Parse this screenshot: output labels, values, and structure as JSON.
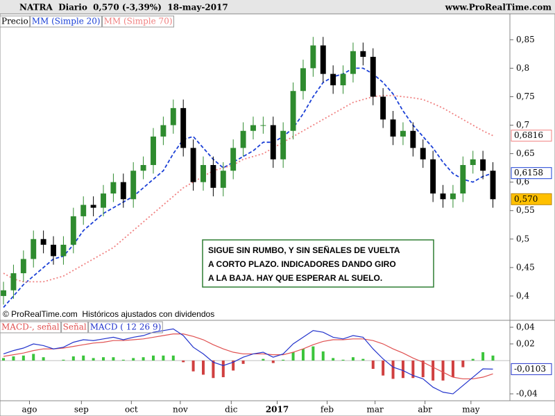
{
  "header": {
    "title": "NATRA  Diario  0,570 (-3,39%)  18-may-2017",
    "site": "www.ProRealTime.com"
  },
  "annotation": {
    "lines": [
      "SIGUE SIN RUMBO, Y SIN SEÑALES DE VUELTA",
      "A CORTO PLAZO. INDICADORES DANDO GIRO",
      "A LA BAJA. HAY QUE ESPERAR AL SUELO."
    ]
  },
  "footer": "© ProRealTime.com  Históricos ajustados con dividendos",
  "chart_data": [
    {
      "type": "candlestick",
      "legend_label": "Precio",
      "up_color": "#2e8b2e",
      "down_color": "#000000",
      "open": [
        0.4,
        0.41,
        0.44,
        0.465,
        0.5,
        0.49,
        0.47,
        0.49,
        0.54,
        0.56,
        0.555,
        0.58,
        0.6,
        0.57,
        0.62,
        0.63,
        0.68,
        0.7,
        0.73,
        0.66,
        0.6,
        0.63,
        0.59,
        0.62,
        0.66,
        0.69,
        0.7,
        0.7,
        0.64,
        0.69,
        0.76,
        0.8,
        0.84,
        0.79,
        0.77,
        0.79,
        0.83,
        0.82,
        0.75,
        0.71,
        0.68,
        0.69,
        0.66,
        0.64,
        0.58,
        0.57,
        0.58,
        0.63,
        0.64,
        0.62
      ],
      "high": [
        0.425,
        0.455,
        0.48,
        0.515,
        0.515,
        0.505,
        0.505,
        0.555,
        0.575,
        0.575,
        0.595,
        0.615,
        0.615,
        0.635,
        0.645,
        0.695,
        0.715,
        0.745,
        0.745,
        0.675,
        0.645,
        0.645,
        0.635,
        0.675,
        0.705,
        0.715,
        0.715,
        0.715,
        0.705,
        0.775,
        0.815,
        0.855,
        0.855,
        0.805,
        0.805,
        0.845,
        0.845,
        0.835,
        0.765,
        0.725,
        0.705,
        0.705,
        0.675,
        0.655,
        0.595,
        0.595,
        0.645,
        0.655,
        0.655,
        0.635
      ],
      "low": [
        0.385,
        0.395,
        0.425,
        0.45,
        0.475,
        0.455,
        0.455,
        0.475,
        0.525,
        0.54,
        0.54,
        0.565,
        0.555,
        0.555,
        0.605,
        0.615,
        0.665,
        0.685,
        0.645,
        0.585,
        0.585,
        0.575,
        0.575,
        0.605,
        0.645,
        0.675,
        0.685,
        0.625,
        0.625,
        0.675,
        0.745,
        0.785,
        0.775,
        0.755,
        0.755,
        0.775,
        0.805,
        0.735,
        0.695,
        0.665,
        0.665,
        0.645,
        0.625,
        0.565,
        0.555,
        0.555,
        0.565,
        0.615,
        0.605,
        0.555
      ],
      "close": [
        0.41,
        0.44,
        0.465,
        0.5,
        0.49,
        0.47,
        0.49,
        0.54,
        0.56,
        0.555,
        0.58,
        0.6,
        0.57,
        0.62,
        0.63,
        0.68,
        0.7,
        0.73,
        0.66,
        0.6,
        0.63,
        0.59,
        0.62,
        0.66,
        0.69,
        0.7,
        0.7,
        0.64,
        0.69,
        0.76,
        0.8,
        0.84,
        0.79,
        0.77,
        0.79,
        0.83,
        0.82,
        0.75,
        0.71,
        0.68,
        0.69,
        0.66,
        0.64,
        0.58,
        0.57,
        0.58,
        0.63,
        0.64,
        0.62,
        0.57
      ],
      "last_label": {
        "value": 0.57,
        "label": "0,570"
      },
      "series": [
        {
          "name": "MM (Simple 20)",
          "color": "#1a3fd6",
          "dash": "5,3",
          "last_label": {
            "value": 0.6158,
            "label": "0,6158"
          },
          "values": [
            0.38,
            0.4,
            0.42,
            0.435,
            0.45,
            0.465,
            0.47,
            0.49,
            0.515,
            0.53,
            0.545,
            0.555,
            0.565,
            0.575,
            0.59,
            0.605,
            0.62,
            0.65,
            0.675,
            0.68,
            0.66,
            0.64,
            0.625,
            0.635,
            0.645,
            0.655,
            0.67,
            0.67,
            0.68,
            0.695,
            0.72,
            0.75,
            0.775,
            0.785,
            0.79,
            0.8,
            0.8,
            0.79,
            0.775,
            0.755,
            0.725,
            0.7,
            0.68,
            0.66,
            0.635,
            0.615,
            0.605,
            0.6,
            0.61,
            0.6158
          ]
        },
        {
          "name": "MM (Simple 70)",
          "color": "#f08080",
          "dash": "2,3",
          "last_label": {
            "value": 0.6816,
            "label": "0,6816"
          },
          "values": [
            0.44,
            0.43,
            0.425,
            0.425,
            0.425,
            0.43,
            0.435,
            0.445,
            0.455,
            0.465,
            0.475,
            0.485,
            0.5,
            0.515,
            0.53,
            0.545,
            0.56,
            0.575,
            0.59,
            0.6,
            0.61,
            0.62,
            0.625,
            0.63,
            0.64,
            0.645,
            0.65,
            0.66,
            0.67,
            0.68,
            0.69,
            0.7,
            0.71,
            0.72,
            0.73,
            0.74,
            0.745,
            0.75,
            0.752,
            0.752,
            0.75,
            0.748,
            0.745,
            0.738,
            0.73,
            0.72,
            0.71,
            0.7,
            0.69,
            0.6816
          ]
        }
      ],
      "xlim": [
        -0.35,
        50.7
      ],
      "ylim": [
        0.378,
        0.893
      ],
      "yticks": [
        {
          "value": 0.4,
          "label": "0,4"
        },
        {
          "value": 0.45,
          "label": "0,45"
        },
        {
          "value": 0.5,
          "label": "0,5"
        },
        {
          "value": 0.55,
          "label": "0,55"
        },
        {
          "value": 0.6,
          "label": "0,6"
        },
        {
          "value": 0.65,
          "label": "0,65"
        },
        {
          "value": 0.7,
          "label": "0,7"
        },
        {
          "value": 0.75,
          "label": "0,75"
        },
        {
          "value": 0.8,
          "label": "0,8"
        },
        {
          "value": 0.85,
          "label": "0,85"
        }
      ]
    },
    {
      "type": "macd",
      "legend_labels": [
        "MACD-, señal",
        "Señal",
        "MACD ( 12 26 9)"
      ],
      "histogram": {
        "up_color": "#3cc43c",
        "down_color": "#d04040",
        "values": [
          0.003,
          0.005,
          0.006,
          0.008,
          0.004,
          0.0,
          0.001,
          0.005,
          0.006,
          0.003,
          0.004,
          0.004,
          0.001,
          0.003,
          0.004,
          0.006,
          0.006,
          0.006,
          -0.002,
          -0.013,
          -0.017,
          -0.021,
          -0.02,
          -0.012,
          -0.004,
          0.0,
          0.002,
          -0.003,
          0.001,
          0.01,
          0.014,
          0.017,
          0.011,
          0.003,
          0.001,
          0.004,
          0.002,
          -0.01,
          -0.018,
          -0.022,
          -0.021,
          -0.021,
          -0.02,
          -0.024,
          -0.024,
          -0.02,
          -0.008,
          0.002,
          0.01,
          0.006
        ]
      },
      "series": [
        {
          "name": "Señal",
          "color": "#e05050",
          "values": [
            0.005,
            0.007,
            0.009,
            0.012,
            0.014,
            0.014,
            0.015,
            0.017,
            0.019,
            0.021,
            0.022,
            0.024,
            0.024,
            0.025,
            0.026,
            0.028,
            0.03,
            0.032,
            0.032,
            0.029,
            0.025,
            0.019,
            0.014,
            0.01,
            0.008,
            0.008,
            0.008,
            0.007,
            0.007,
            0.01,
            0.014,
            0.019,
            0.023,
            0.025,
            0.025,
            0.026,
            0.026,
            0.024,
            0.02,
            0.014,
            0.009,
            0.003,
            -0.002,
            -0.008,
            -0.014,
            -0.02,
            -0.022,
            -0.022,
            -0.02,
            -0.016
          ]
        },
        {
          "name": "MACD",
          "color": "#2233cc",
          "last_label": {
            "value": -0.0103,
            "label": "-0,0103"
          },
          "values": [
            0.008,
            0.012,
            0.015,
            0.02,
            0.018,
            0.014,
            0.016,
            0.022,
            0.025,
            0.024,
            0.026,
            0.028,
            0.025,
            0.028,
            0.03,
            0.034,
            0.036,
            0.038,
            0.03,
            0.016,
            0.008,
            -0.002,
            -0.006,
            -0.002,
            0.004,
            0.008,
            0.01,
            0.004,
            0.008,
            0.02,
            0.028,
            0.036,
            0.034,
            0.028,
            0.026,
            0.03,
            0.028,
            0.014,
            0.002,
            -0.008,
            -0.012,
            -0.018,
            -0.022,
            -0.032,
            -0.038,
            -0.04,
            -0.03,
            -0.02,
            -0.01,
            -0.0103
          ]
        }
      ],
      "ylim": [
        -0.0483,
        0.0475
      ],
      "yticks": [
        {
          "value": -0.04,
          "label": "-0,04"
        },
        {
          "value": 0.02,
          "label": "0,02"
        },
        {
          "value": 0.04,
          "label": "0,04"
        }
      ],
      "xticks": [
        {
          "value": 2.6,
          "label": "ago"
        },
        {
          "value": 7.8,
          "label": "sep"
        },
        {
          "value": 12.8,
          "label": "oct"
        },
        {
          "value": 17.7,
          "label": "nov"
        },
        {
          "value": 22.8,
          "label": "dic"
        },
        {
          "value": 27.4,
          "label": "2017"
        },
        {
          "value": 32.4,
          "label": "feb"
        },
        {
          "value": 37.2,
          "label": "mar"
        },
        {
          "value": 42.2,
          "label": "abr"
        },
        {
          "value": 46.8,
          "label": "may"
        }
      ]
    }
  ]
}
